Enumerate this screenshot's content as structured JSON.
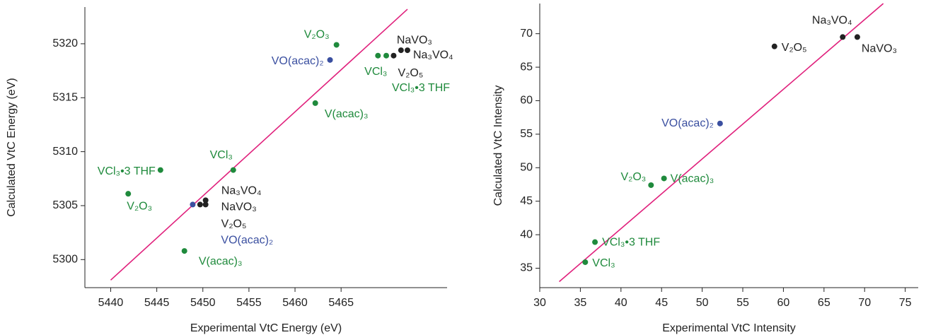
{
  "chart_data": [
    {
      "type": "scatter",
      "xlabel": "Experimental VtC Energy (eV)",
      "ylabel": "Calculated VtC Energy (eV)",
      "xlim": [
        5437.2,
        5476.5
      ],
      "ylim": [
        5297.4,
        5323.4
      ],
      "xticks": [
        5440,
        5445,
        5450,
        5455,
        5460,
        5465
      ],
      "yticks": [
        5300,
        5305,
        5310,
        5315,
        5320
      ],
      "labels": [
        "V₂O₃",
        "VO(acac)₂",
        "VCl₃",
        "VCl₃•3 THF",
        "V₂O₅",
        "NaVO₃",
        "Na₃VO₄",
        "V(acac)₃",
        "VCl₃•3 THF",
        "V₂O₃",
        "VCl₃",
        "V(acac)₃",
        "VO(acac)₂",
        "Na₃VO₄",
        "NaVO₃",
        "V₂O₅"
      ],
      "x": [
        5464.5,
        5463.8,
        5469.0,
        5469.9,
        5470.7,
        5471.5,
        5472.2,
        5462.2,
        5445.4,
        5441.9,
        5453.3,
        5448.0,
        5448.9,
        5449.7,
        5450.3,
        5450.3
      ],
      "values": [
        5319.9,
        5318.5,
        5318.9,
        5318.9,
        5318.9,
        5319.4,
        5319.4,
        5314.5,
        5308.3,
        5306.1,
        5308.3,
        5300.8,
        5305.1,
        5305.1,
        5305.1,
        5305.5
      ],
      "colors": [
        "#1f8a3c",
        "#3a4fa0",
        "#1f8a3c",
        "#1f8a3c",
        "#222222",
        "#222222",
        "#222222",
        "#1f8a3c",
        "#1f8a3c",
        "#1f8a3c",
        "#1f8a3c",
        "#1f8a3c",
        "#3a4fa0",
        "#222222",
        "#222222",
        "#222222"
      ],
      "fit_line": {
        "x": [
          5440,
          5472.2
        ],
        "values": [
          5298.1,
          5323.2
        ],
        "color": "#e0207c"
      }
    },
    {
      "type": "scatter",
      "xlabel": "Experimental VtC Intensity",
      "ylabel": "Calculated VtC Intensity",
      "xlim": [
        30,
        76.6
      ],
      "ylim": [
        32.1,
        74.5
      ],
      "xticks": [
        30,
        35,
        40,
        45,
        50,
        55,
        60,
        65,
        70,
        75
      ],
      "yticks": [
        35,
        40,
        45,
        50,
        55,
        60,
        65,
        70
      ],
      "labels": [
        "VCl₃",
        "VCl₃•3 THF",
        "V₂O₃",
        "V(acac)₃",
        "VO(acac)₂",
        "V₂O₅",
        "Na₃VO₄",
        "NaVO₃"
      ],
      "x": [
        35.6,
        36.8,
        43.7,
        45.3,
        52.2,
        58.9,
        67.3,
        69.1
      ],
      "values": [
        35.9,
        38.9,
        47.4,
        48.4,
        56.6,
        68.1,
        69.5,
        69.5
      ],
      "colors": [
        "#1f8a3c",
        "#1f8a3c",
        "#1f8a3c",
        "#1f8a3c",
        "#3a4fa0",
        "#222222",
        "#222222",
        "#222222"
      ],
      "fit_line": {
        "x": [
          32.4,
          72.3
        ],
        "values": [
          33.0,
          74.5
        ],
        "color": "#e0207c"
      }
    }
  ]
}
